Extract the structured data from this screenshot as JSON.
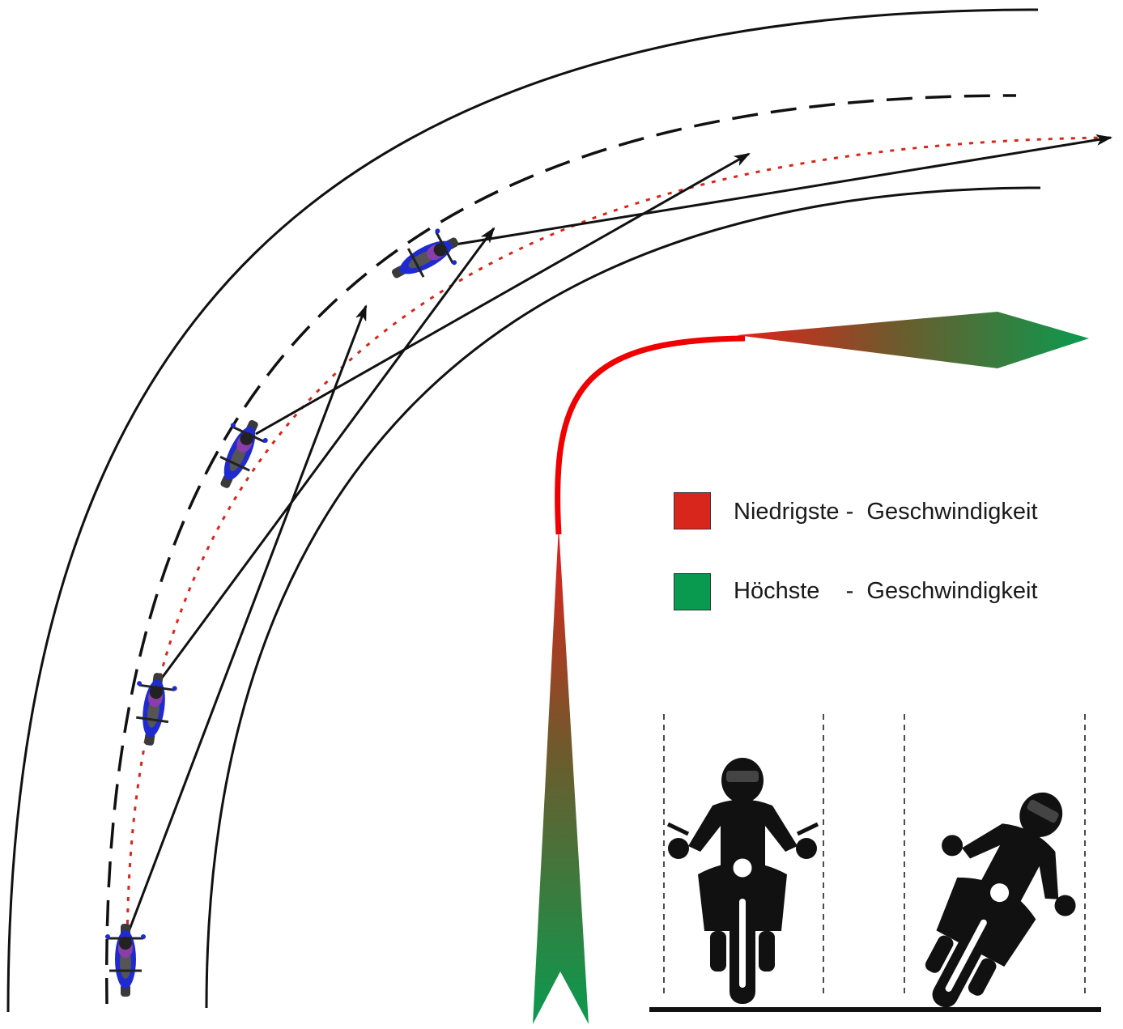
{
  "colors": {
    "low_speed": "#d9261c",
    "high_speed": "#0a9a4f",
    "road": "#111111",
    "racing_line": "#d9261c",
    "bike_body": "#1f2bd1",
    "bike_accent": "#8a3fa8",
    "tire": "#3a3a3a"
  },
  "legend": {
    "low_label": "Niedrigste -  Geschwindigkeit",
    "high_label": "Höchste    -  Geschwindigkeit"
  },
  "icons": {
    "bike_top": "motorcycle-topview-icon",
    "rider_upright": "rider-upright-icon",
    "rider_leaning": "rider-leaning-icon"
  }
}
